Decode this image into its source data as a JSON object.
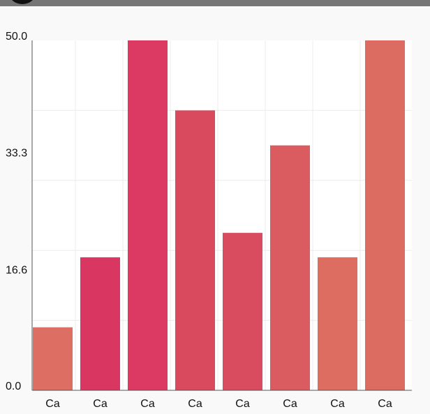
{
  "chart_data": {
    "type": "bar",
    "categories": [
      "Ca",
      "Ca",
      "Ca",
      "Ca",
      "Ca",
      "Ca",
      "Ca",
      "Ca"
    ],
    "values": [
      9.0,
      19.0,
      50.0,
      40.0,
      22.5,
      35.0,
      19.0,
      50.0
    ],
    "colors": [
      "#dc6e63",
      "#d93661",
      "#dc3a62",
      "#da4a5e",
      "#d94c60",
      "#da5c60",
      "#dd6c61",
      "#dc6c62"
    ],
    "ylim": [
      0,
      50
    ],
    "yticks": [
      "0.0",
      "16.6",
      "33.3",
      "50.0"
    ],
    "title": "",
    "xlabel": "",
    "ylabel": "",
    "grid": true
  }
}
